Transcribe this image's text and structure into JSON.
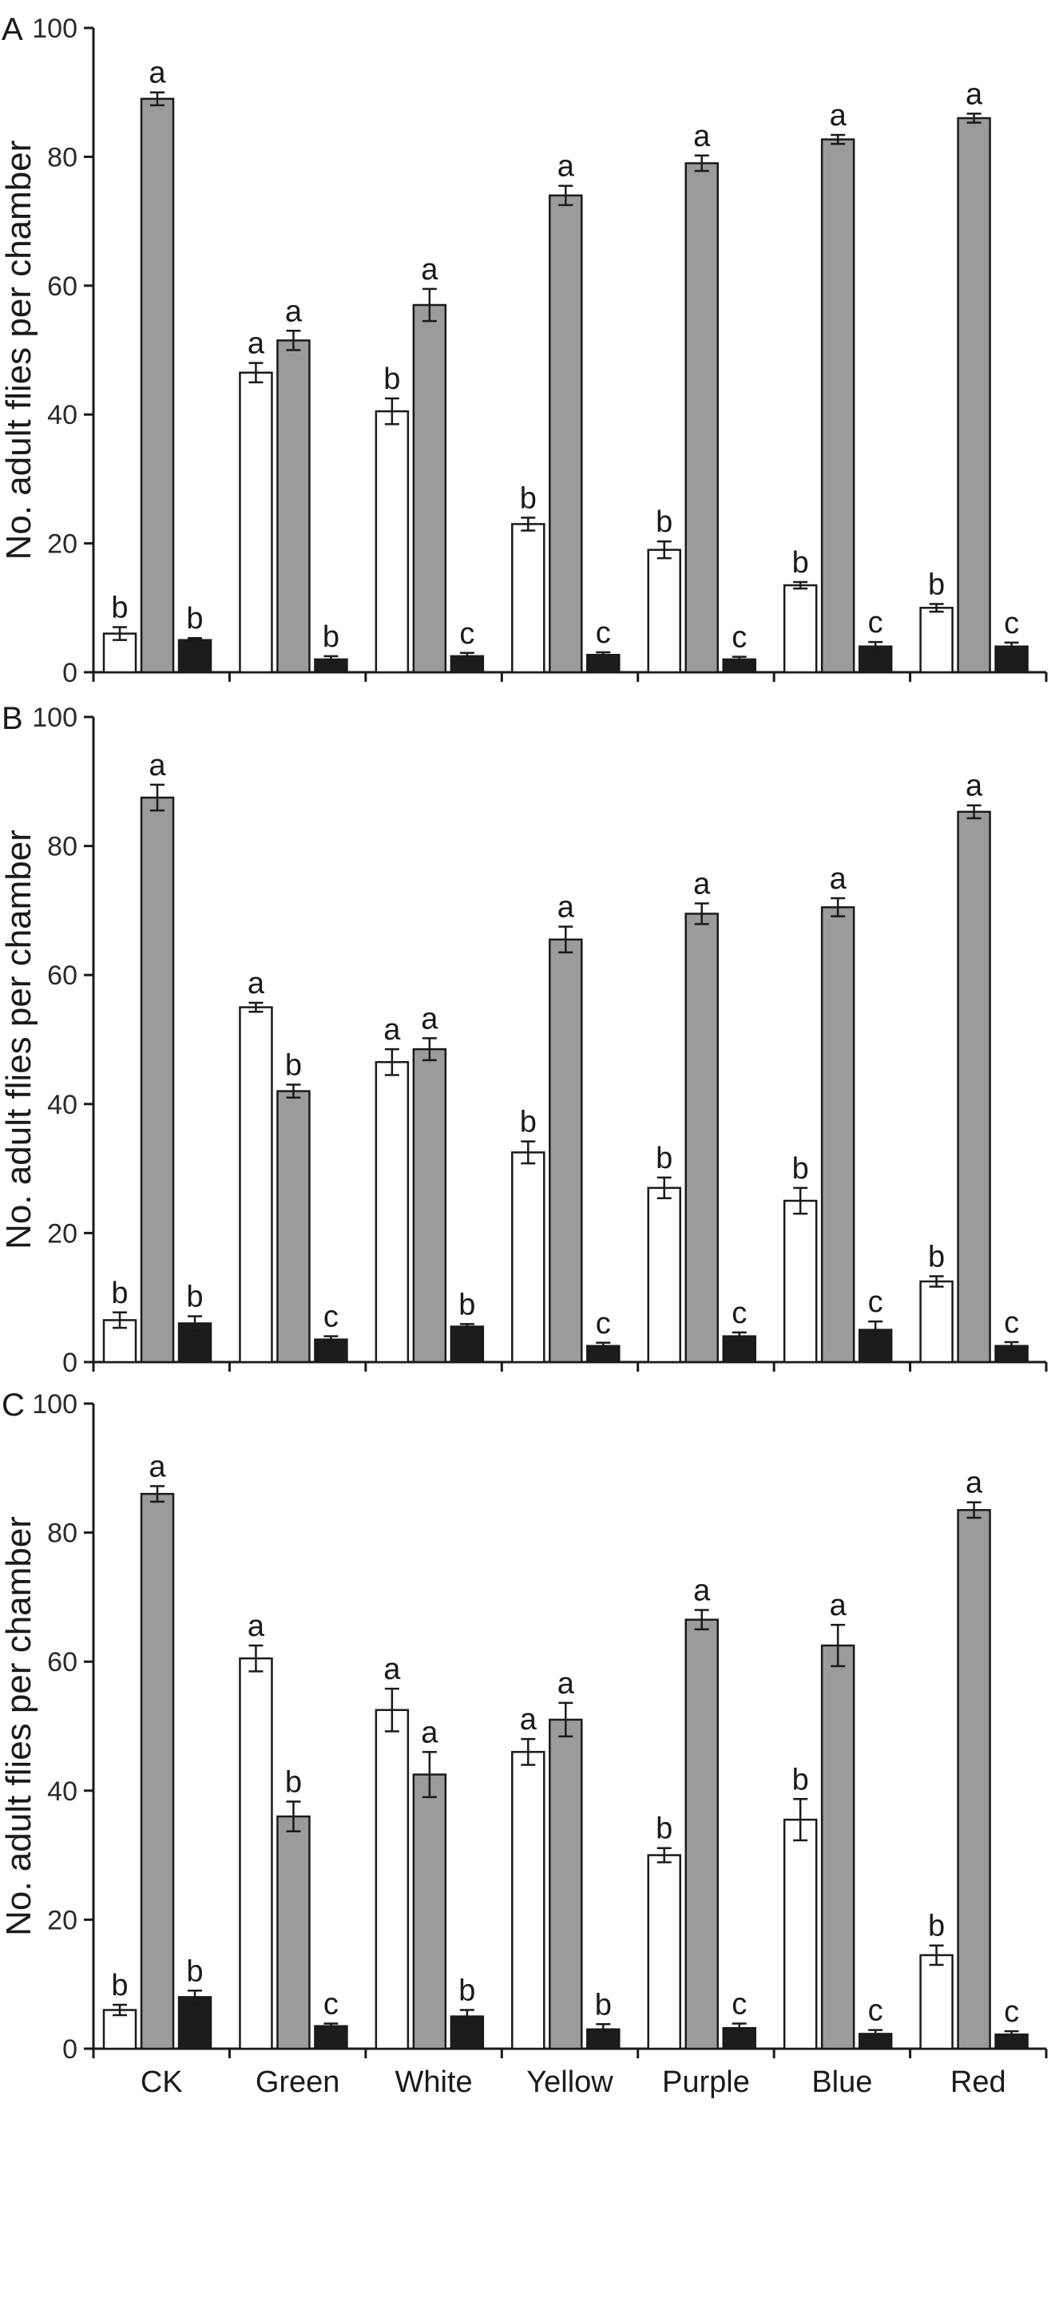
{
  "colors": {
    "white_series": "#ffffff",
    "gray_series": "#9b9b9b",
    "black_series": "#1c1c1c",
    "axis": "#1a1a1a"
  },
  "x_labels": [
    "CK",
    "Green",
    "White",
    "Yellow",
    "Purple",
    "Blue",
    "Red"
  ],
  "chart_data": [
    {
      "type": "bar",
      "panel_label": "A",
      "ylabel": "No. adult flies per chamber",
      "ylim": [
        0,
        100
      ],
      "yticks": [
        "0",
        "20",
        "40",
        "60",
        "80",
        "100"
      ],
      "categories": [
        "CK",
        "Green",
        "White",
        "Yellow",
        "Purple",
        "Blue",
        "Red"
      ],
      "show_x_tick_labels": false,
      "series": [
        {
          "color_key": "white",
          "values": [
            6.0,
            46.5,
            40.5,
            23.0,
            19.0,
            13.5,
            10.0
          ],
          "errors": [
            1.0,
            1.5,
            2.0,
            1.0,
            1.3,
            0.5,
            0.6
          ],
          "letters": [
            "b",
            "a",
            "b",
            "b",
            "b",
            "b",
            "b"
          ]
        },
        {
          "color_key": "gray",
          "values": [
            89.0,
            51.5,
            57.0,
            74.0,
            79.0,
            82.7,
            86.0
          ],
          "errors": [
            1.0,
            1.5,
            2.5,
            1.5,
            1.2,
            0.7,
            0.7
          ],
          "letters": [
            "a",
            "a",
            "a",
            "a",
            "a",
            "a",
            "a"
          ]
        },
        {
          "color_key": "black",
          "values": [
            5.0,
            2.0,
            2.5,
            2.7,
            2.0,
            4.0,
            4.0
          ],
          "errors": [
            0.3,
            0.5,
            0.5,
            0.4,
            0.4,
            0.7,
            0.6
          ],
          "letters": [
            "b",
            "b",
            "c",
            "c",
            "c",
            "c",
            "c"
          ]
        }
      ]
    },
    {
      "type": "bar",
      "panel_label": "B",
      "ylabel": "No. adult flies per chamber",
      "ylim": [
        0,
        100
      ],
      "yticks": [
        "0",
        "20",
        "40",
        "60",
        "80",
        "100"
      ],
      "categories": [
        "CK",
        "Green",
        "White",
        "Yellow",
        "Purple",
        "Blue",
        "Red"
      ],
      "show_x_tick_labels": false,
      "series": [
        {
          "color_key": "white",
          "values": [
            6.5,
            55.0,
            46.5,
            32.5,
            27.0,
            25.0,
            12.5
          ],
          "errors": [
            1.2,
            0.7,
            2.0,
            1.7,
            1.6,
            2.0,
            0.8
          ],
          "letters": [
            "b",
            "a",
            "a",
            "b",
            "b",
            "b",
            "b"
          ]
        },
        {
          "color_key": "gray",
          "values": [
            87.5,
            42.0,
            48.5,
            65.5,
            69.5,
            70.5,
            85.3
          ],
          "errors": [
            2.0,
            1.0,
            1.7,
            2.0,
            1.6,
            1.4,
            1.0
          ],
          "letters": [
            "a",
            "b",
            "a",
            "a",
            "a",
            "a",
            "a"
          ]
        },
        {
          "color_key": "black",
          "values": [
            6.0,
            3.5,
            5.5,
            2.5,
            4.0,
            5.0,
            2.5
          ],
          "errors": [
            1.1,
            0.5,
            0.4,
            0.5,
            0.6,
            1.3,
            0.6
          ],
          "letters": [
            "b",
            "c",
            "b",
            "c",
            "c",
            "c",
            "c"
          ]
        }
      ]
    },
    {
      "type": "bar",
      "panel_label": "C",
      "ylabel": "No. adult flies per chamber",
      "ylim": [
        0,
        100
      ],
      "yticks": [
        "0",
        "20",
        "40",
        "60",
        "80",
        "100"
      ],
      "categories": [
        "CK",
        "Green",
        "White",
        "Yellow",
        "Purple",
        "Blue",
        "Red"
      ],
      "show_x_tick_labels": true,
      "series": [
        {
          "color_key": "white",
          "values": [
            6.0,
            60.5,
            52.5,
            46.0,
            30.0,
            35.5,
            14.5
          ],
          "errors": [
            0.8,
            2.0,
            3.3,
            2.0,
            1.1,
            3.2,
            1.5
          ],
          "letters": [
            "b",
            "a",
            "a",
            "a",
            "b",
            "b",
            "b"
          ]
        },
        {
          "color_key": "gray",
          "values": [
            86.0,
            36.0,
            42.5,
            51.0,
            66.5,
            62.5,
            83.5
          ],
          "errors": [
            1.2,
            2.3,
            3.5,
            2.6,
            1.5,
            3.2,
            1.2
          ],
          "letters": [
            "a",
            "b",
            "a",
            "a",
            "a",
            "a",
            "a"
          ]
        },
        {
          "color_key": "black",
          "values": [
            8.0,
            3.5,
            5.0,
            3.0,
            3.2,
            2.3,
            2.2
          ],
          "errors": [
            1.0,
            0.4,
            1.0,
            0.8,
            0.7,
            0.6,
            0.5
          ],
          "letters": [
            "b",
            "c",
            "b",
            "b",
            "c",
            "c",
            "c"
          ]
        }
      ]
    }
  ]
}
